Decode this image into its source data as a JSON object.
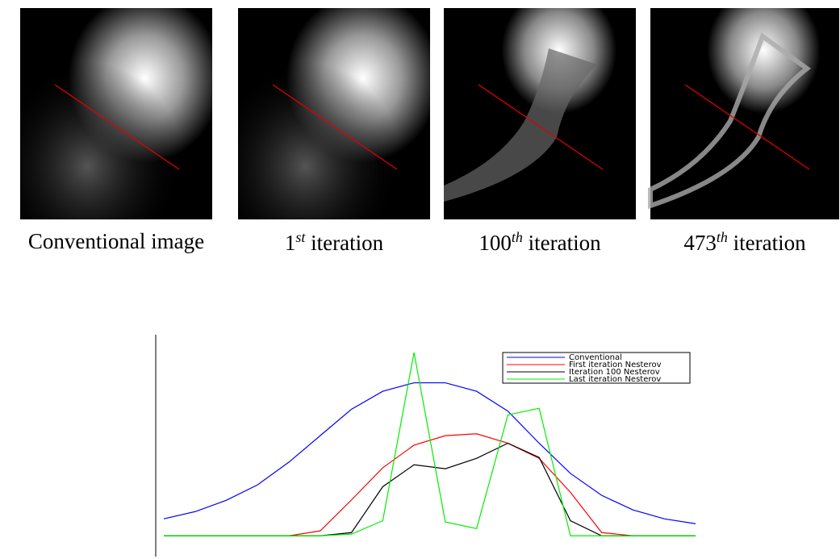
{
  "panels": [
    {
      "caption": "Conventional image"
    },
    {
      "caption": "1",
      "sup": "st",
      "rest": " iteration"
    },
    {
      "caption": "100",
      "sup": "th",
      "rest": " iteration"
    },
    {
      "caption": "473",
      "sup": "th",
      "rest": " iteration"
    }
  ],
  "chart_data": {
    "type": "line",
    "x": [
      0,
      1,
      2,
      3,
      4,
      5,
      6,
      7,
      8,
      9,
      10,
      11,
      12,
      13,
      14,
      15,
      16,
      17
    ],
    "xlim": [
      0,
      17
    ],
    "ylim": [
      -11,
      106
    ],
    "legend": "upper right",
    "series": [
      {
        "name": "Conventional",
        "color": "#0000ff",
        "values": [
          9,
          12.8,
          18.8,
          27,
          39,
          53,
          67,
          76.5,
          81,
          81,
          76.5,
          66,
          49,
          33,
          21.4,
          13.7,
          9,
          6.4
        ]
      },
      {
        "name": "First iteration Nesterov",
        "color": "#ff0000",
        "values": [
          0,
          0,
          0,
          0,
          0,
          2.6,
          19,
          36,
          48,
          53,
          54,
          49,
          41,
          23,
          1.7,
          0,
          0,
          0
        ]
      },
      {
        "name": "Iteration 100 Nesterov",
        "color": "#000000",
        "values": [
          0,
          0,
          0,
          0,
          0,
          0,
          1.7,
          26,
          37.6,
          35.5,
          41,
          49,
          41.5,
          8,
          0,
          0,
          0,
          0
        ]
      },
      {
        "name": "Last iteration Nesterov",
        "color": "#00ee00",
        "values": [
          0,
          0,
          0,
          0,
          0,
          0,
          0.9,
          8,
          97,
          7.3,
          3.8,
          64,
          67.5,
          0,
          0,
          0,
          0,
          0
        ]
      }
    ]
  }
}
